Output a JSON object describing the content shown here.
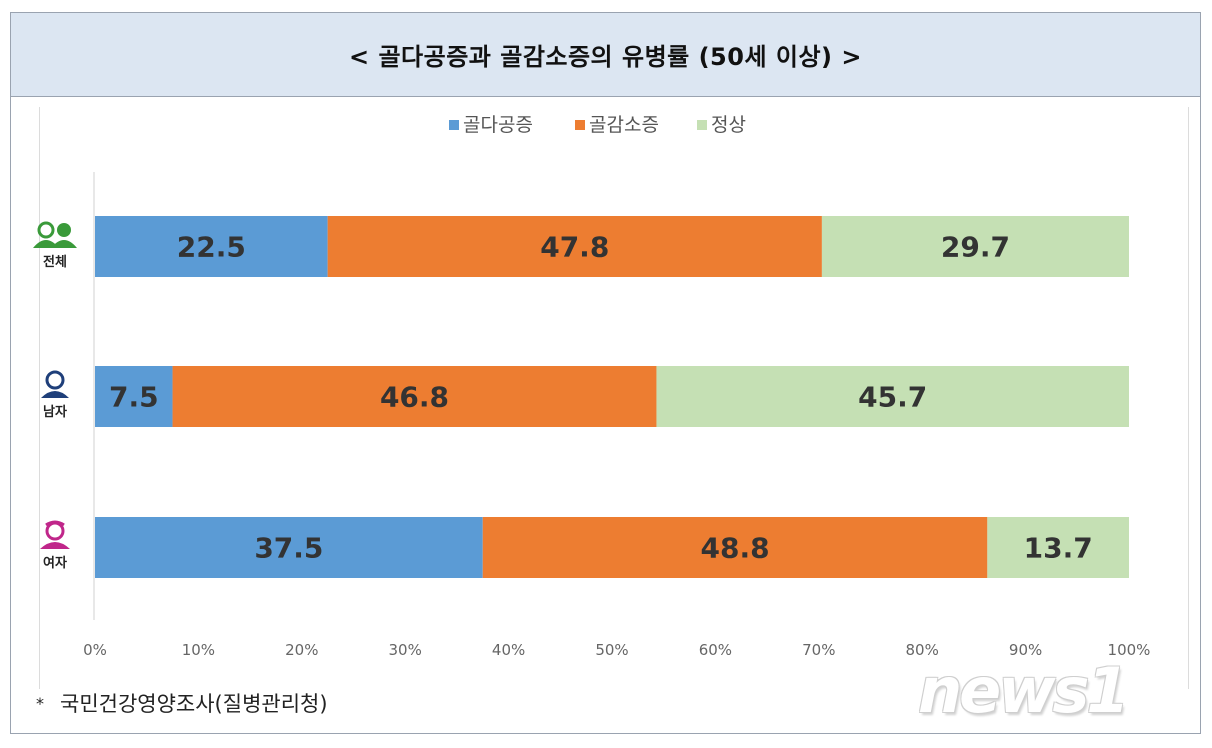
{
  "title": "< 골다공증과 골감소증의 유병률 (50세 이상) >",
  "footnote": {
    "marker": "*",
    "text": "국민건강영양조사(질병관리청)"
  },
  "watermark": "news1",
  "colors": {
    "osteoporosis": "#5b9bd5",
    "osteopenia": "#ed7d31",
    "normal": "#c5e0b4",
    "label_text": "#333333"
  },
  "chart_data": {
    "type": "bar",
    "orientation": "horizontal",
    "stacked": true,
    "percent_stacked": true,
    "title": "< 골다공증과 골감소증의 유병률 (50세 이상) >",
    "categories": [
      "전체",
      "남자",
      "여자"
    ],
    "category_icons": [
      "two-persons-icon",
      "male-person-icon",
      "female-person-icon"
    ],
    "category_icon_colors": [
      "#3a9a3a",
      "#1f3f7a",
      "#c0268a"
    ],
    "series": [
      {
        "name": "골다공증",
        "values": [
          22.5,
          7.5,
          37.5
        ],
        "color": "#5b9bd5"
      },
      {
        "name": "골감소증",
        "values": [
          47.8,
          46.8,
          48.8
        ],
        "color": "#ed7d31"
      },
      {
        "name": "정상",
        "values": [
          29.7,
          45.7,
          13.7
        ],
        "color": "#c5e0b4"
      }
    ],
    "xticks": [
      "0%",
      "10%",
      "20%",
      "30%",
      "40%",
      "50%",
      "60%",
      "70%",
      "80%",
      "90%",
      "100%"
    ],
    "xlim": [
      0,
      100
    ],
    "grid": false,
    "legend": "top-center"
  }
}
